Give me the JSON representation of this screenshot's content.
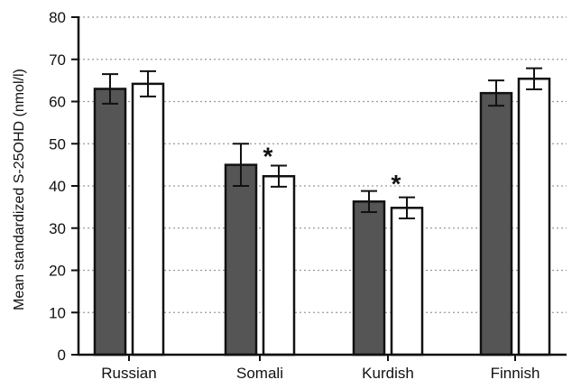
{
  "chart_data": {
    "type": "bar",
    "title": "",
    "xlabel": "",
    "ylabel": "Mean standardized S-25OHD (nmol/l)",
    "ylim": [
      0,
      80
    ],
    "yticks": [
      0,
      10,
      20,
      30,
      40,
      50,
      60,
      70,
      80
    ],
    "grid": "horizontal dotted",
    "legend": "none",
    "categories": [
      "Russian",
      "Somali",
      "Kurdish",
      "Finnish"
    ],
    "series": [
      {
        "color": "#555555",
        "values": [
          63,
          45,
          36.3,
          62
        ],
        "error": [
          3.5,
          5,
          2.5,
          3
        ]
      },
      {
        "color": "#ffffff",
        "values": [
          64.2,
          42.3,
          34.8,
          65.4
        ],
        "error": [
          3,
          2.5,
          2.5,
          2.5
        ]
      }
    ],
    "annotations": [
      {
        "text": "*",
        "category": "Somali",
        "y": 48
      },
      {
        "text": "*",
        "category": "Kurdish",
        "y": 41.5
      }
    ]
  }
}
